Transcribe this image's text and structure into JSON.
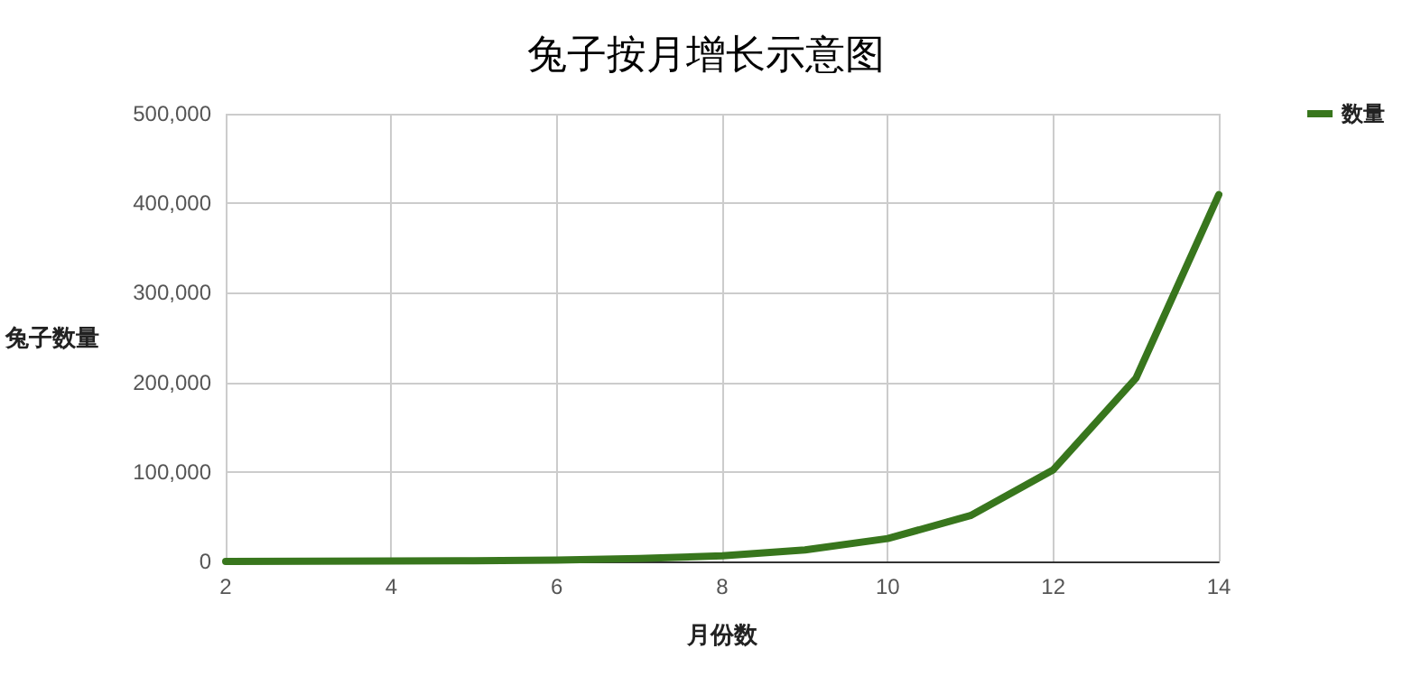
{
  "chart_data": {
    "type": "line",
    "title": "兔子按月增长示意图",
    "xlabel": "月份数",
    "ylabel": "兔子数量",
    "x": [
      2,
      3,
      4,
      5,
      6,
      7,
      8,
      9,
      10,
      11,
      12,
      13,
      14
    ],
    "series": [
      {
        "name": "数量",
        "color": "#38761d",
        "values": [
          100,
          200,
          400,
          800,
          1600,
          3200,
          6400,
          12800,
          25600,
          51200,
          102400,
          204800,
          409600
        ]
      }
    ],
    "xlim": [
      2,
      14
    ],
    "xticks": [
      2,
      4,
      6,
      8,
      10,
      12,
      14
    ],
    "ylim": [
      0,
      500000
    ],
    "yticks": [
      {
        "value": 0,
        "label": "0"
      },
      {
        "value": 100000,
        "label": "100,000"
      },
      {
        "value": 200000,
        "label": "200,000"
      },
      {
        "value": 300000,
        "label": "300,000"
      },
      {
        "value": 400000,
        "label": "400,000"
      },
      {
        "value": 500000,
        "label": "500,000"
      }
    ],
    "grid": true,
    "legend": "top right",
    "marker": "none",
    "line_style": "solid"
  }
}
